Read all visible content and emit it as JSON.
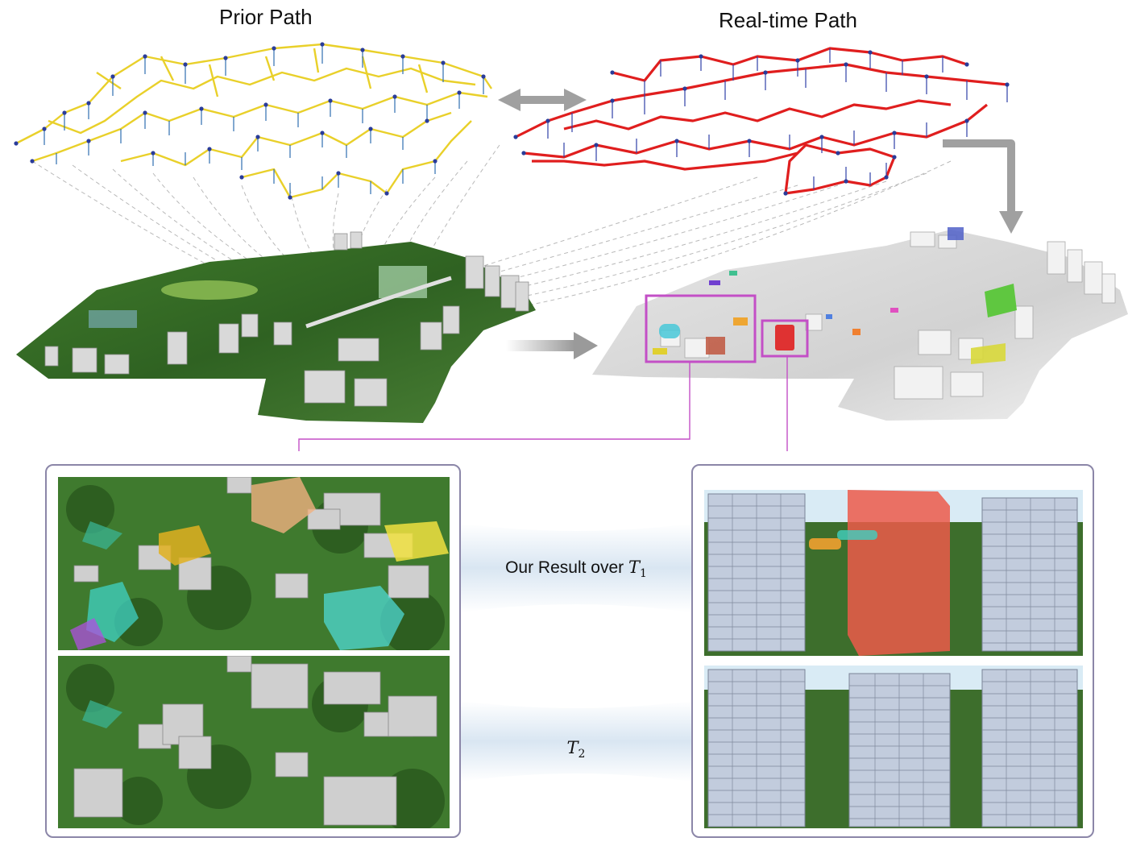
{
  "titles": {
    "prior": "Prior Path",
    "realtime": "Real-time Path"
  },
  "bands": {
    "top": {
      "prefix": "Our Result over ",
      "var": "T",
      "sub": "1"
    },
    "bottom": {
      "prefix": "",
      "var": "T",
      "sub": "2"
    }
  },
  "colors": {
    "prior_path": "#e9d02a",
    "realtime_path": "#e01e1e",
    "node": "#2a3c9a",
    "highlight_box": "#c34fc6",
    "arrow": "#9e9e9e",
    "panel_border": "#8b86a8"
  }
}
